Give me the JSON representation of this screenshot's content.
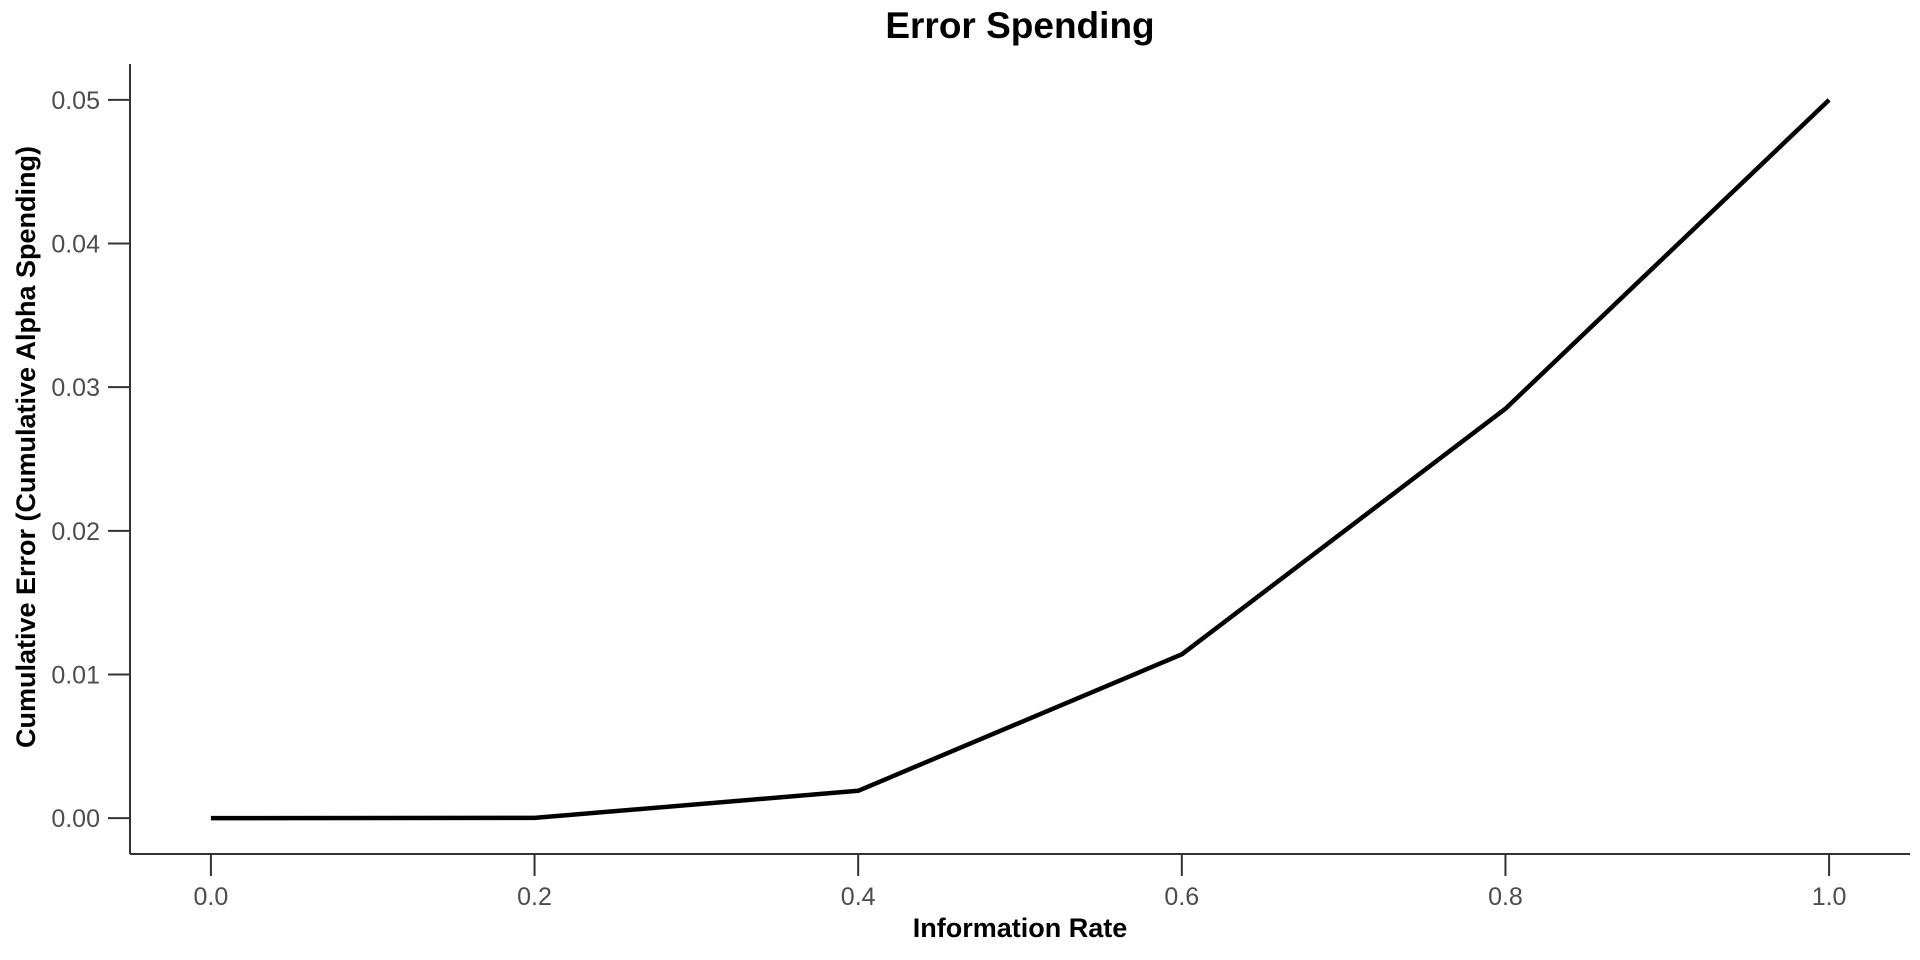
{
  "chart_data": {
    "type": "line",
    "title": "Error Spending",
    "xlabel": "Information Rate",
    "ylabel": "Cumulative Error (Cumulative Alpha Spending)",
    "x": [
      0,
      0.2,
      0.4,
      0.6,
      0.8,
      1.0
    ],
    "series": [
      {
        "name": "cumulative-alpha-spending",
        "values": [
          0,
          1.17e-05,
          0.0019,
          0.0114,
          0.0285,
          0.05
        ]
      }
    ],
    "xlim": [
      0,
      1
    ],
    "ylim": [
      0,
      0.05
    ],
    "xticks": [
      0,
      0.2,
      0.4,
      0.6,
      0.8,
      1
    ],
    "xtick_labels": [
      "0.0",
      "0.2",
      "0.4",
      "0.6",
      "0.8",
      "1.0"
    ],
    "yticks": [
      0,
      0.01,
      0.02,
      0.03,
      0.04,
      0.05
    ],
    "ytick_labels": [
      "0.00",
      "0.01",
      "0.02",
      "0.03",
      "0.04",
      "0.05"
    ],
    "grid": false,
    "legend": "none",
    "styles": {
      "line_color": "#000000",
      "line_width": 4.5,
      "axis_color": "#333333",
      "axis_width": 2,
      "tick_length": 22,
      "tick_label_color": "#4d4d4d",
      "background": "#ffffff"
    }
  }
}
